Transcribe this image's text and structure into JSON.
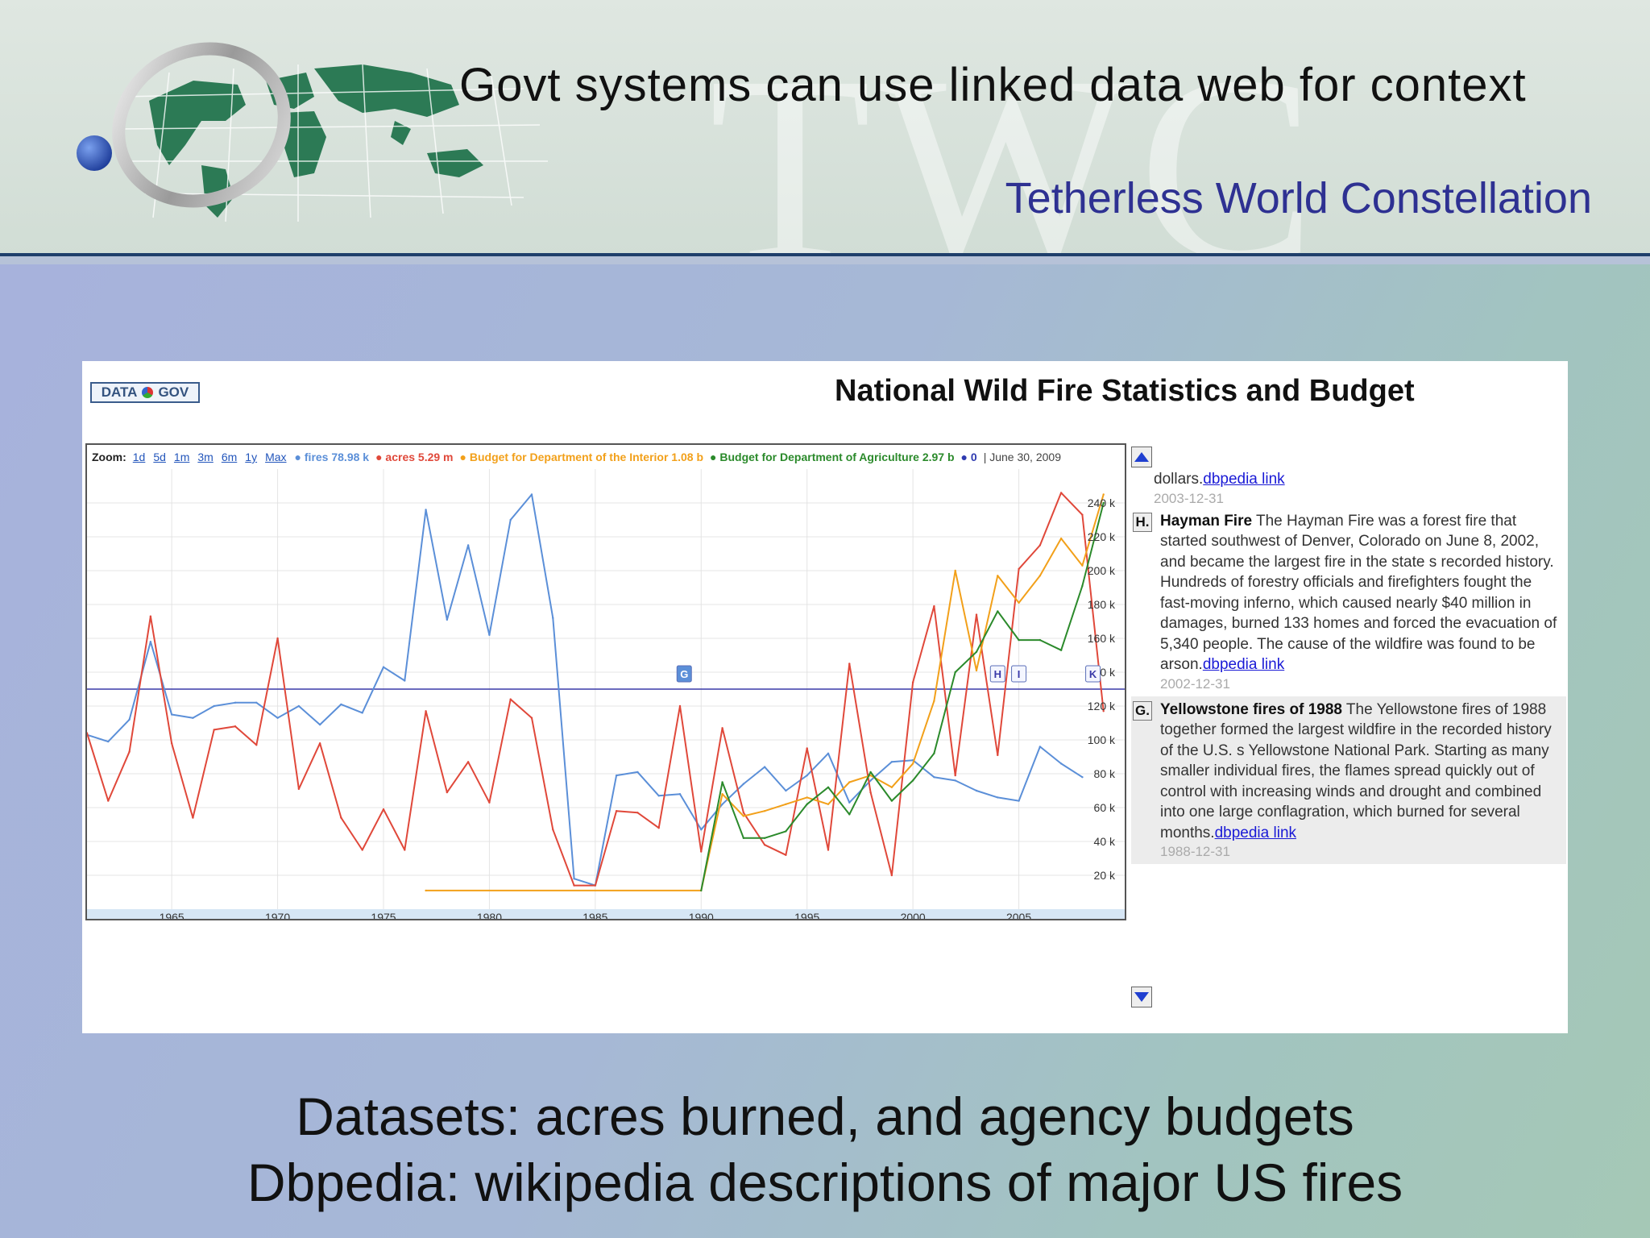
{
  "slide": {
    "title": "Govt systems can use linked data web for context",
    "org": "Tetherless World Constellation",
    "watermark": "TWC",
    "caption_line1": "Datasets: acres burned, and agency budgets",
    "caption_line2": "Dbpedia: wikipedia descriptions of major US fires"
  },
  "panel": {
    "logo_left": "DATA",
    "logo_right": "GOV",
    "chart_title": "National Wild Fire Statistics and Budget",
    "zoom_label": "Zoom:",
    "zoom_links": [
      "1d",
      "5d",
      "1m",
      "3m",
      "6m",
      "1y",
      "Max"
    ],
    "legend": [
      {
        "text": "fires 78.98 k",
        "color": "#5b8fd8"
      },
      {
        "text": "acres 5.29 m",
        "color": "#e0483a"
      },
      {
        "text": "Budget for Department of the Interior 1.08 b",
        "color": "#f2a01a"
      },
      {
        "text": "Budget for Department of Agriculture 2.97 b",
        "color": "#2b8a2b"
      },
      {
        "text": "0",
        "color": "#2e3ab0"
      }
    ],
    "legend_date": "| June 30, 2009",
    "markers": [
      "G",
      "H",
      "I",
      "K"
    ]
  },
  "annotations": {
    "frag_text": "dollars.",
    "frag_link": "dbpedia link",
    "frag_date": "2003-12-31",
    "items": [
      {
        "letter": "H.",
        "name": "Hayman Fire",
        "text": "The Hayman Fire was a forest fire that started southwest of Denver, Colorado on June 8, 2002, and became the largest fire in the state s recorded history. Hundreds of forestry officials and firefighters fought the fast-moving inferno, which caused nearly $40 million in damages, burned 133 homes and forced the evacuation of 5,340 people. The cause of the wildfire was found to be arson.",
        "link": "dbpedia link",
        "date": "2002-12-31"
      },
      {
        "letter": "G.",
        "name": "Yellowstone fires of 1988",
        "text": "The Yellowstone fires of 1988 together formed the largest wildfire in the recorded history of the U.S. s Yellowstone National Park. Starting as many smaller individual fires, the flames spread quickly out of control with increasing winds and drought and combined into one large conflagration, which burned for several months.",
        "link": "dbpedia link",
        "date": "1988-12-31"
      }
    ]
  },
  "chart_data": {
    "type": "line",
    "title": "National Wild Fire Statistics and Budget",
    "xlim": [
      1961,
      2010
    ],
    "ylim": [
      0,
      260000
    ],
    "x_ticks": [
      1965,
      1970,
      1975,
      1980,
      1985,
      1990,
      1995,
      2000,
      2005
    ],
    "y_ticks": [
      20000,
      40000,
      60000,
      80000,
      100000,
      120000,
      140000,
      160000,
      180000,
      200000,
      220000,
      240000
    ],
    "y_tick_labels": [
      "20 k",
      "40 k",
      "60 k",
      "80 k",
      "100 k",
      "120 k",
      "140 k",
      "160 k",
      "180 k",
      "200 k",
      "220 k",
      "240 k"
    ],
    "reference_line": 130000,
    "series": [
      {
        "name": "fires",
        "color": "#5b8fd8",
        "x": [
          1961,
          1962,
          1963,
          1964,
          1965,
          1966,
          1967,
          1968,
          1969,
          1970,
          1971,
          1972,
          1973,
          1974,
          1975,
          1976,
          1977,
          1978,
          1979,
          1980,
          1981,
          1982,
          1983,
          1984,
          1985,
          1986,
          1987,
          1988,
          1989,
          1990,
          1991,
          1992,
          1993,
          1994,
          1995,
          1996,
          1997,
          1998,
          1999,
          2000,
          2001,
          2002,
          2003,
          2004,
          2005,
          2006,
          2007,
          2008
        ],
        "values": [
          103000,
          99000,
          112000,
          158000,
          115000,
          113000,
          120000,
          122000,
          122000,
          113000,
          120000,
          109000,
          121000,
          116000,
          143000,
          135000,
          236000,
          171000,
          215000,
          162000,
          230000,
          245000,
          172000,
          18000,
          14000,
          79000,
          81000,
          67000,
          68000,
          47000,
          62000,
          74000,
          84000,
          70000,
          79000,
          92000,
          63000,
          76000,
          87000,
          88000,
          78000,
          76000,
          70000,
          66000,
          64000,
          96000,
          86000,
          78000
        ]
      },
      {
        "name": "acres",
        "color": "#e0483a",
        "x": [
          1961,
          1962,
          1963,
          1964,
          1965,
          1966,
          1967,
          1968,
          1969,
          1970,
          1971,
          1972,
          1973,
          1974,
          1975,
          1976,
          1977,
          1978,
          1979,
          1980,
          1981,
          1982,
          1983,
          1984,
          1985,
          1986,
          1987,
          1988,
          1989,
          1990,
          1991,
          1992,
          1993,
          1994,
          1995,
          1996,
          1997,
          1998,
          1999,
          2000,
          2001,
          2002,
          2003,
          2004,
          2005,
          2006,
          2007,
          2008,
          2009
        ],
        "values": [
          104000,
          64000,
          93000,
          173000,
          98000,
          54000,
          106000,
          108000,
          97000,
          160000,
          71000,
          98000,
          54000,
          35000,
          59000,
          35000,
          117000,
          69000,
          87000,
          63000,
          124000,
          113000,
          47000,
          14000,
          14000,
          58000,
          57000,
          48000,
          120000,
          34000,
          107000,
          57000,
          38000,
          32000,
          95000,
          35000,
          145000,
          69000,
          20000,
          134000,
          179000,
          79000,
          174000,
          91000,
          201000,
          215000,
          246000,
          233000,
          117000
        ]
      },
      {
        "name": "Budget for Department of the Interior",
        "color": "#f2a01a",
        "x": [
          1977,
          1990,
          1991,
          1992,
          1993,
          1994,
          1995,
          1996,
          1997,
          1998,
          1999,
          2000,
          2001,
          2002,
          2003,
          2004,
          2005,
          2006,
          2007,
          2008,
          2009
        ],
        "values": [
          11000,
          11000,
          68000,
          55000,
          58000,
          62000,
          66000,
          62000,
          75000,
          79000,
          72000,
          86000,
          123000,
          200000,
          141000,
          197000,
          181000,
          197000,
          219000,
          203000,
          245000
        ]
      },
      {
        "name": "Budget for Department of Agriculture",
        "color": "#2b8a2b",
        "x": [
          1990,
          1991,
          1992,
          1993,
          1994,
          1995,
          1996,
          1997,
          1998,
          1999,
          2000,
          2001,
          2002,
          2003,
          2004,
          2005,
          2006,
          2007,
          2008,
          2009
        ],
        "values": [
          11000,
          75000,
          42000,
          42000,
          46000,
          62000,
          72000,
          56000,
          81000,
          64000,
          76000,
          92000,
          140000,
          152000,
          176000,
          159000,
          159000,
          153000,
          191000,
          240000
        ]
      }
    ],
    "navigator_ticks": [
      "1870",
      "1880",
      "1890",
      "1900",
      "1910",
      "1920",
      "1930",
      "1940",
      "1950",
      "1960",
      "1970",
      "1980",
      "1990",
      "2000"
    ],
    "navigator_range": [
      1960,
      2009
    ]
  }
}
